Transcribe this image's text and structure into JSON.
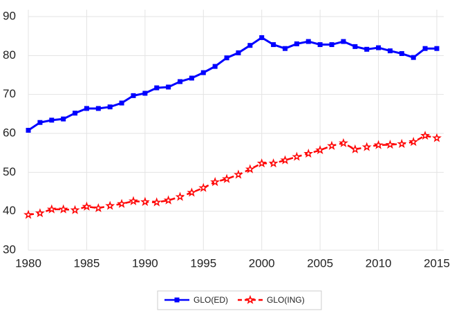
{
  "chart_data": {
    "type": "line",
    "x": [
      1980,
      1981,
      1982,
      1983,
      1984,
      1985,
      1986,
      1987,
      1988,
      1989,
      1990,
      1991,
      1992,
      1993,
      1994,
      1995,
      1996,
      1997,
      1998,
      1999,
      2000,
      2001,
      2002,
      2003,
      2004,
      2005,
      2006,
      2007,
      2008,
      2009,
      2010,
      2011,
      2012,
      2013,
      2014,
      2015
    ],
    "series": [
      {
        "name": "GLO(ED)",
        "color": "#0000ff",
        "line_style": "solid",
        "marker": "square",
        "values": [
          60.8,
          62.8,
          63.4,
          63.7,
          65.2,
          66.4,
          66.4,
          66.8,
          67.8,
          69.7,
          70.3,
          71.7,
          71.9,
          73.3,
          74.2,
          75.6,
          77.2,
          79.4,
          80.7,
          82.6,
          84.6,
          82.8,
          81.8,
          83.0,
          83.6,
          82.8,
          82.8,
          83.6,
          82.3,
          81.6,
          82.0,
          81.2,
          80.5,
          79.5,
          81.8,
          81.8
        ]
      },
      {
        "name": "GLO(ING)",
        "color": "#ff0000",
        "line_style": "dashed",
        "marker": "star",
        "values": [
          39.1,
          39.5,
          40.5,
          40.5,
          40.3,
          41.2,
          40.8,
          41.4,
          41.9,
          42.6,
          42.4,
          42.3,
          42.8,
          43.7,
          44.8,
          46.0,
          47.5,
          48.3,
          49.4,
          50.8,
          52.3,
          52.3,
          53.1,
          54.0,
          54.8,
          55.7,
          56.8,
          57.5,
          55.9,
          56.5,
          57.0,
          57.1,
          57.3,
          57.8,
          59.4,
          58.8
        ]
      }
    ],
    "xlim": [
      1980,
      2015
    ],
    "xticks": [
      1980,
      1985,
      1990,
      1995,
      2000,
      2005,
      2010,
      2015
    ],
    "ylim": [
      30,
      90
    ],
    "yticks": [
      30,
      40,
      50,
      60,
      70,
      80,
      90
    ],
    "grid": true,
    "legend": "bottom"
  }
}
